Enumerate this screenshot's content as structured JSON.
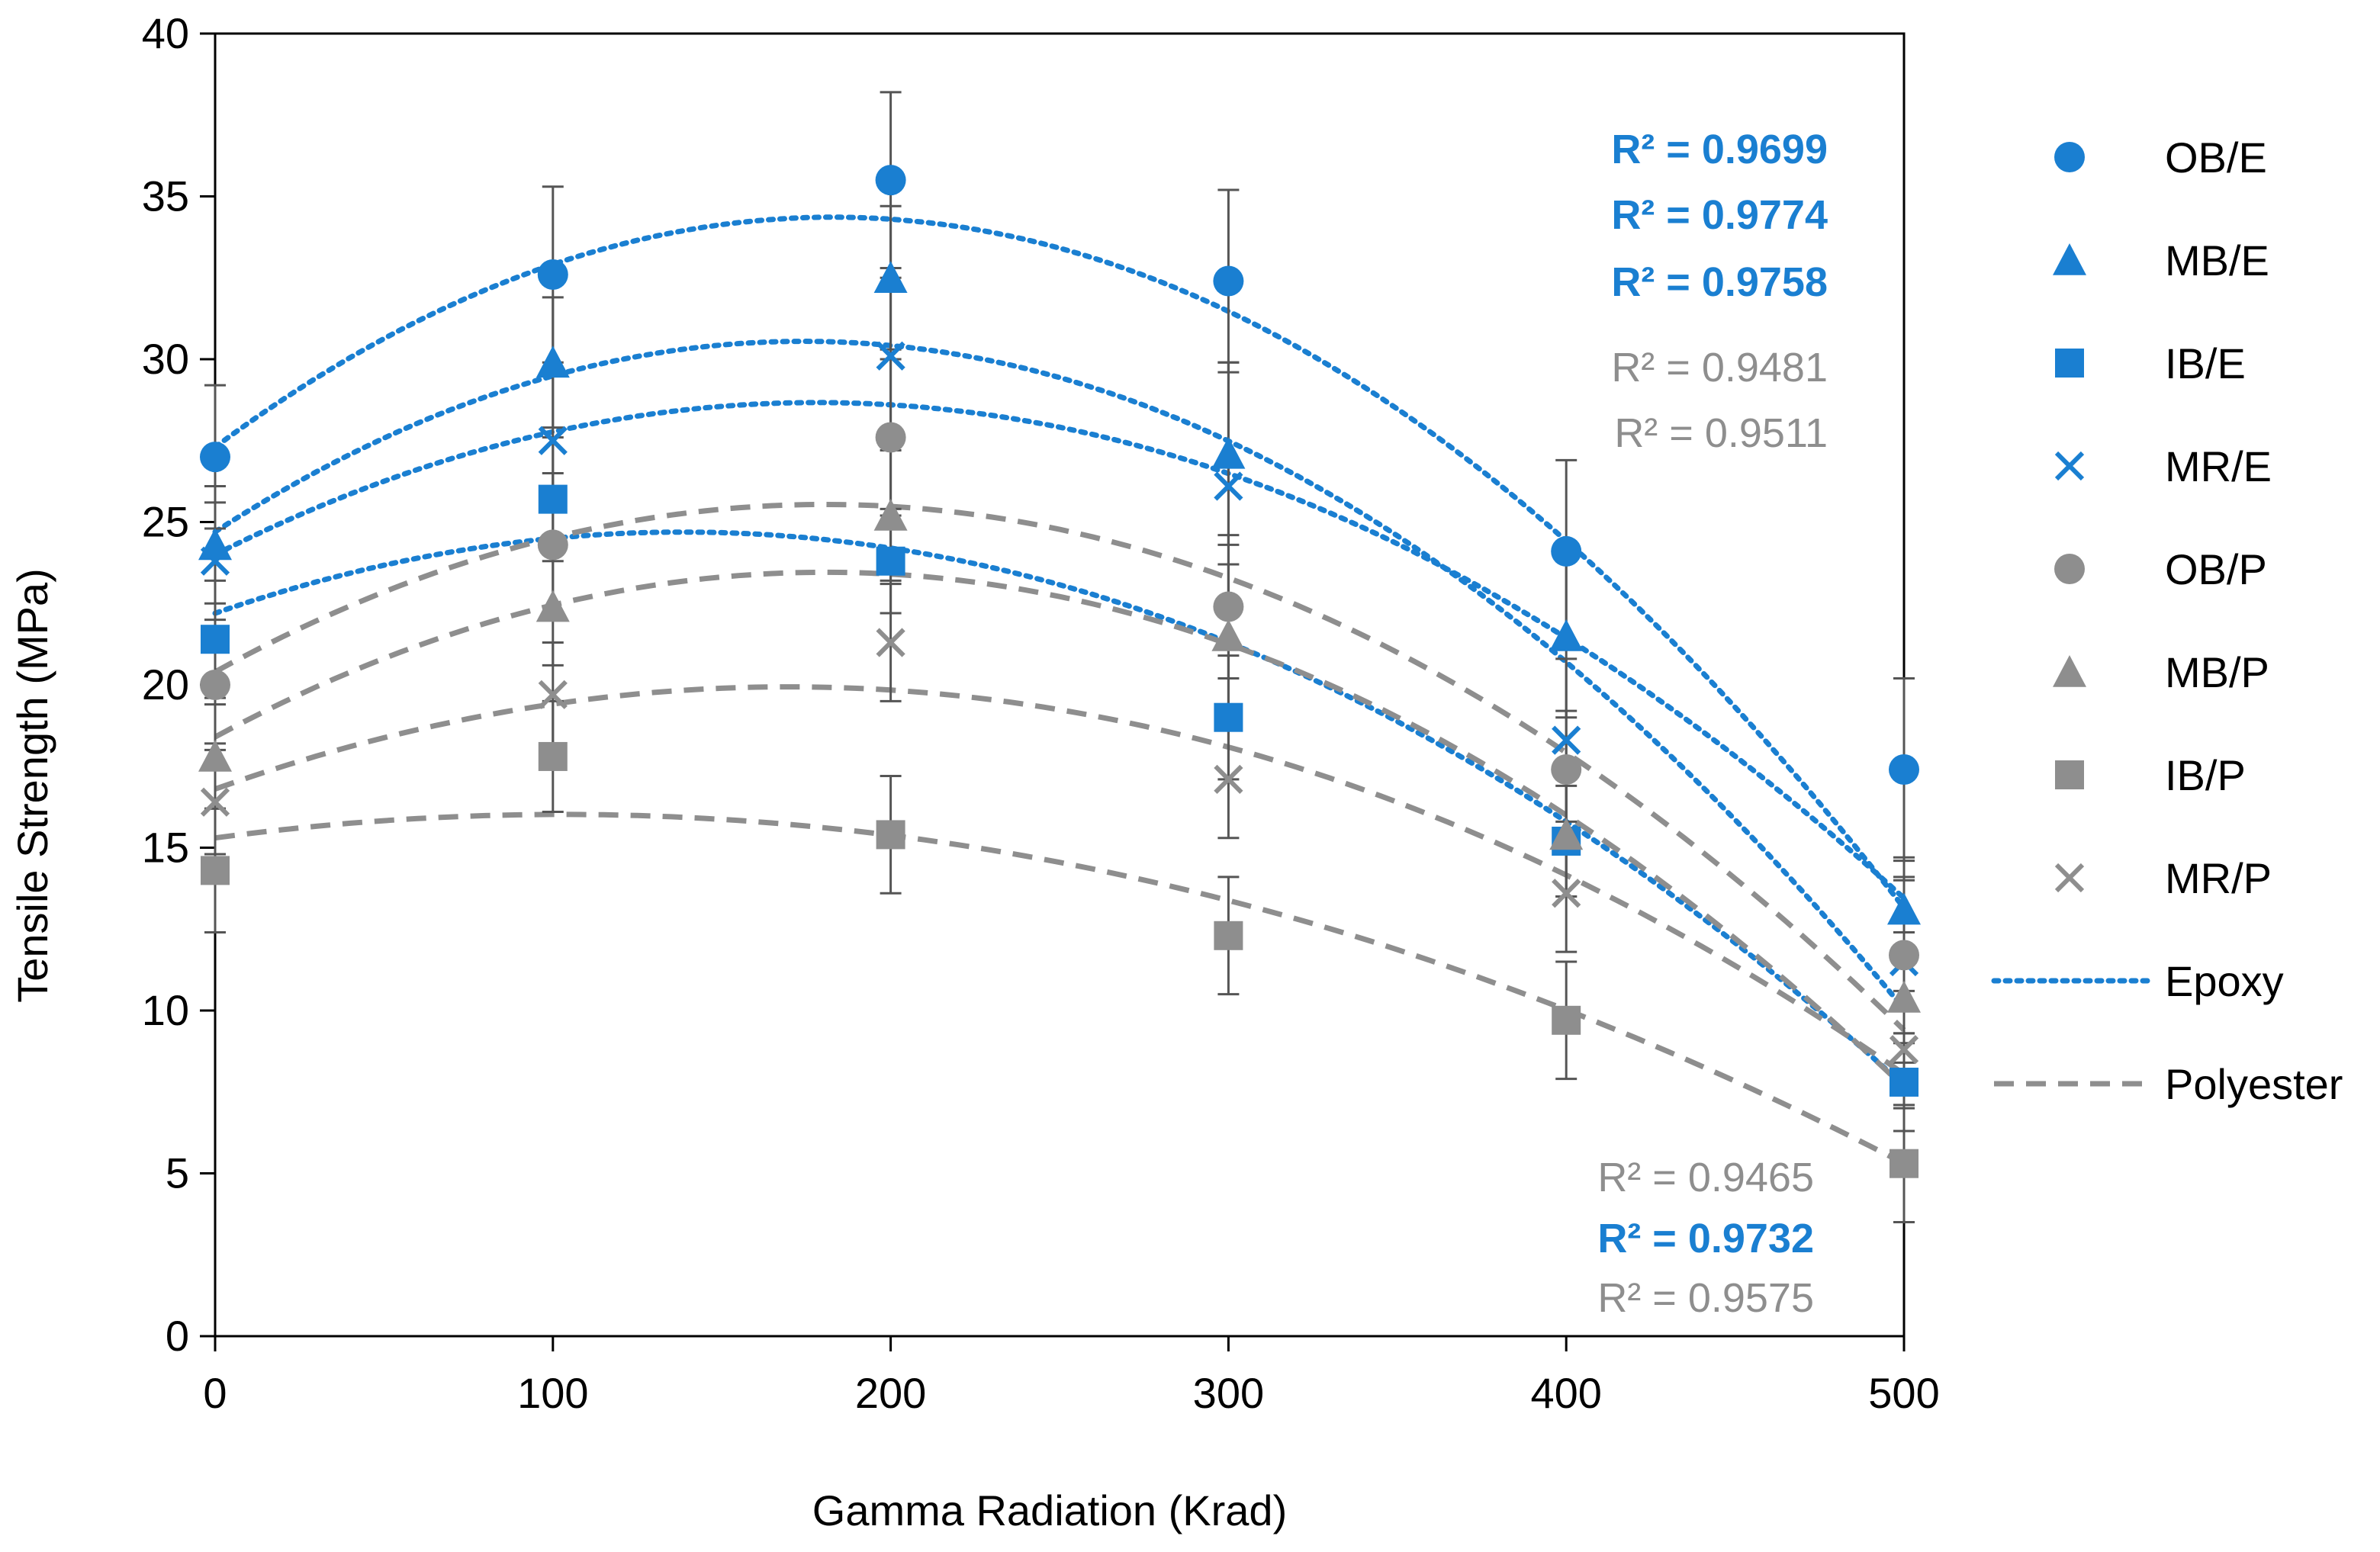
{
  "chart_data": {
    "type": "scatter",
    "title": "",
    "xlabel": "Gamma Radiation (Krad)",
    "ylabel": "Tensile Strength (MPa)",
    "xlim": [
      0,
      500
    ],
    "ylim": [
      0,
      40
    ],
    "xticks": [
      0,
      100,
      200,
      300,
      400,
      500
    ],
    "yticks": [
      0,
      5,
      10,
      15,
      20,
      25,
      30,
      35,
      40
    ],
    "grid": false,
    "legend_position": "right",
    "x": [
      0,
      100,
      200,
      300,
      400,
      500
    ],
    "colors": {
      "epoxy": "#1a7fd1",
      "polyester": "#8e8e8e"
    },
    "series": [
      {
        "name": "OB/E",
        "group": "epoxy",
        "marker": "circle",
        "values": [
          27.0,
          32.6,
          35.5,
          32.4,
          24.1,
          17.4
        ],
        "errors": [
          2.2,
          2.7,
          2.7,
          2.8,
          2.8,
          2.8
        ]
      },
      {
        "name": "MB/E",
        "group": "epoxy",
        "marker": "triangle",
        "values": [
          24.3,
          29.9,
          32.5,
          27.1,
          21.5,
          13.1
        ],
        "errors": [
          1.8,
          2.0,
          2.2,
          2.8,
          2.5,
          1.6
        ]
      },
      {
        "name": "IB/E",
        "group": "epoxy",
        "marker": "square",
        "values": [
          21.4,
          25.7,
          23.8,
          19.0,
          15.2,
          7.8
        ],
        "errors": [
          1.8,
          1.9,
          1.6,
          1.9,
          1.7,
          1.5
        ]
      },
      {
        "name": "MR/E",
        "group": "epoxy",
        "marker": "x",
        "values": [
          23.8,
          27.5,
          30.1,
          26.1,
          18.3,
          11.5
        ],
        "errors": [
          1.8,
          2.0,
          2.4,
          3.8,
          2.5,
          2.5
        ]
      },
      {
        "name": "OB/P",
        "group": "polyester",
        "marker": "circle",
        "values": [
          20.0,
          24.3,
          27.6,
          22.4,
          17.4,
          11.7
        ],
        "errors": [
          1.8,
          2.2,
          2.4,
          2.2,
          1.8,
          2.4
        ]
      },
      {
        "name": "MB/P",
        "group": "polyester",
        "marker": "triangle",
        "values": [
          17.8,
          22.4,
          25.2,
          21.5,
          15.4,
          10.4
        ],
        "errors": [
          1.6,
          1.8,
          2.0,
          2.2,
          1.9,
          2.0
        ]
      },
      {
        "name": "IB/P",
        "group": "polyester",
        "marker": "square",
        "values": [
          14.3,
          17.8,
          15.4,
          12.3,
          9.7,
          5.3
        ],
        "errors": [
          1.9,
          1.7,
          1.8,
          1.8,
          1.8,
          1.8
        ]
      },
      {
        "name": "MR/P",
        "group": "polyester",
        "marker": "x",
        "values": [
          16.4,
          19.7,
          21.3,
          17.1,
          13.6,
          8.8
        ],
        "errors": [
          1.6,
          1.6,
          1.8,
          1.8,
          1.8,
          1.8
        ]
      }
    ],
    "trendlines": [
      {
        "group": "epoxy",
        "style": "dotted",
        "coef": [
          27.3,
          0.0772,
          -0.000211
        ]
      },
      {
        "group": "epoxy",
        "style": "dotted",
        "coef": [
          24.7,
          0.0672,
          -0.000193
        ]
      },
      {
        "group": "epoxy",
        "style": "dotted",
        "coef": [
          24.0,
          0.0524,
          -0.000147
        ]
      },
      {
        "group": "epoxy",
        "style": "dotted",
        "coef": [
          22.2,
          0.036,
          -0.00013
        ]
      },
      {
        "group": "polyester",
        "style": "dashed",
        "coef": [
          20.4,
          0.057,
          -0.000158
        ]
      },
      {
        "group": "polyester",
        "style": "dashed",
        "coef": [
          18.4,
          0.056,
          -0.000155
        ]
      },
      {
        "group": "polyester",
        "style": "dashed",
        "coef": [
          16.8,
          0.037,
          -0.000109
        ]
      },
      {
        "group": "polyester",
        "style": "dashed",
        "coef": [
          15.3,
          0.014,
          -6.8e-05
        ]
      }
    ],
    "r2_annotations": {
      "top": [
        {
          "text": "R² = 0.9699",
          "group": "epoxy"
        },
        {
          "text": "R² = 0.9774",
          "group": "epoxy"
        },
        {
          "text": "R² = 0.9758",
          "group": "epoxy"
        },
        {
          "text": "R² = 0.9481",
          "group": "polyester"
        },
        {
          "text": "R² = 0.9511",
          "group": "polyester"
        }
      ],
      "bottom": [
        {
          "text": "R² = 0.9465",
          "group": "polyester"
        },
        {
          "text": "R² = 0.9732",
          "group": "epoxy"
        },
        {
          "text": "R² = 0.9575",
          "group": "polyester"
        }
      ]
    },
    "legend": [
      {
        "label": "OB/E",
        "group": "epoxy",
        "marker": "circle"
      },
      {
        "label": "MB/E",
        "group": "epoxy",
        "marker": "triangle"
      },
      {
        "label": "IB/E",
        "group": "epoxy",
        "marker": "square"
      },
      {
        "label": "MR/E",
        "group": "epoxy",
        "marker": "x"
      },
      {
        "label": "OB/P",
        "group": "polyester",
        "marker": "circle"
      },
      {
        "label": "MB/P",
        "group": "polyester",
        "marker": "triangle"
      },
      {
        "label": "IB/P",
        "group": "polyester",
        "marker": "square"
      },
      {
        "label": "MR/P",
        "group": "polyester",
        "marker": "x"
      },
      {
        "label": "Epoxy",
        "group": "epoxy",
        "marker": "dotted-line"
      },
      {
        "label": "Polyester",
        "group": "polyester",
        "marker": "dashed-line"
      }
    ]
  }
}
